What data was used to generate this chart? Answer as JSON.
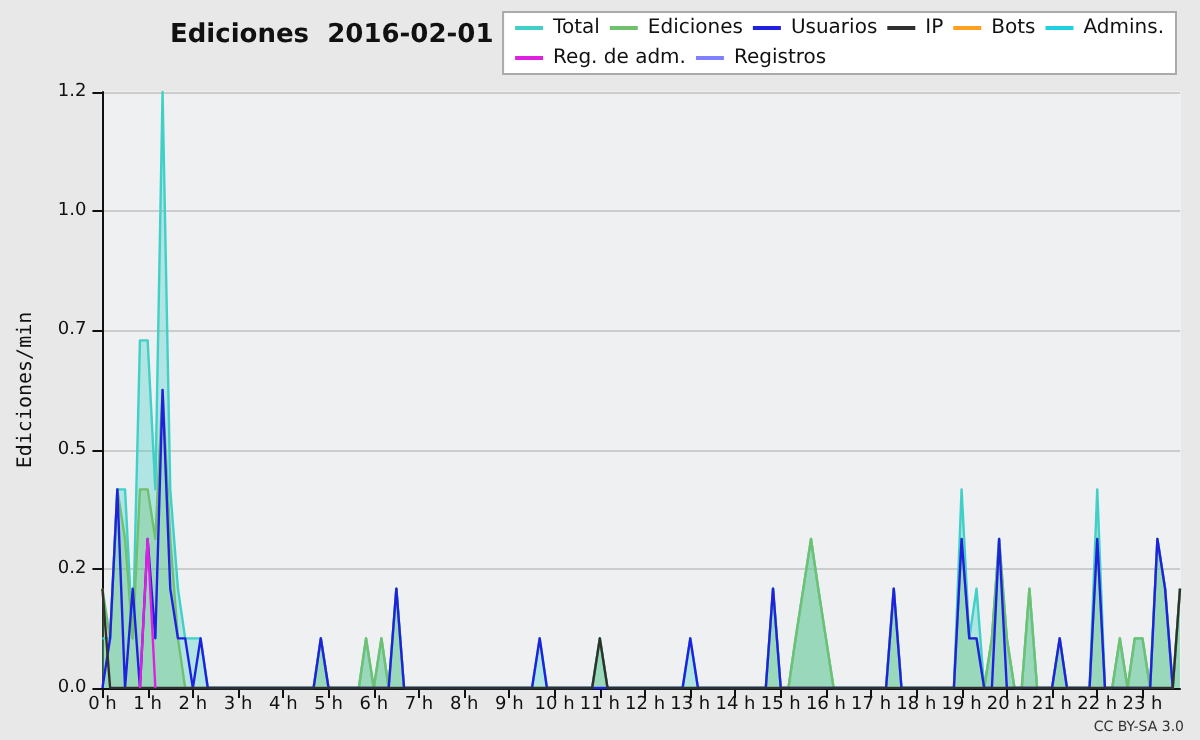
{
  "chart_data": {
    "type": "line",
    "title": "Ediciones  2016-02-01",
    "ylabel": "Ediciones/min",
    "annotations": [
      "CC BY-SA 3.0"
    ],
    "xlim": [
      0,
      23.83
    ],
    "xticks": [
      {
        "value": 0,
        "label": "0 h"
      },
      {
        "value": 1,
        "label": "1 h"
      },
      {
        "value": 2,
        "label": "2 h"
      },
      {
        "value": 3,
        "label": "3 h"
      },
      {
        "value": 4,
        "label": "4 h"
      },
      {
        "value": 5,
        "label": "5 h"
      },
      {
        "value": 6,
        "label": "6 h"
      },
      {
        "value": 7,
        "label": "7 h"
      },
      {
        "value": 8,
        "label": "8 h"
      },
      {
        "value": 9,
        "label": "9 h"
      },
      {
        "value": 10,
        "label": "10 h"
      },
      {
        "value": 11,
        "label": "11 h"
      },
      {
        "value": 12,
        "label": "12 h"
      },
      {
        "value": 13,
        "label": "13 h"
      },
      {
        "value": 14,
        "label": "14 h"
      },
      {
        "value": 15,
        "label": "15 h"
      },
      {
        "value": 16,
        "label": "16 h"
      },
      {
        "value": 17,
        "label": "17 h"
      },
      {
        "value": 18,
        "label": "18 h"
      },
      {
        "value": 19,
        "label": "19 h"
      },
      {
        "value": 20,
        "label": "20 h"
      },
      {
        "value": 21,
        "label": "21 h"
      },
      {
        "value": 22,
        "label": "22 h"
      },
      {
        "value": 23,
        "label": "23 h"
      }
    ],
    "ylim": [
      0,
      1.2
    ],
    "yticks": [
      {
        "value": 0,
        "label": "0.0"
      },
      {
        "value": 0.24,
        "label": "0.2"
      },
      {
        "value": 0.48,
        "label": "0.5"
      },
      {
        "value": 0.72,
        "label": "0.7"
      },
      {
        "value": 0.96,
        "label": "1.0"
      },
      {
        "value": 1.2,
        "label": "1.2"
      }
    ],
    "grid": "y",
    "legend": "top right",
    "series": [
      {
        "name": "Total",
        "type": "area",
        "color": "#40d0c8",
        "x": [
          0,
          0.17,
          0.33,
          0.5,
          0.67,
          0.83,
          1,
          1.17,
          1.33,
          1.5,
          1.67,
          1.83,
          2,
          2.17,
          2.33,
          4.67,
          4.83,
          5,
          5.67,
          5.83,
          6,
          6.17,
          6.33,
          6.5,
          6.67,
          9.5,
          9.67,
          9.83,
          10.83,
          11,
          11.17,
          12.83,
          13,
          13.17,
          14.67,
          14.83,
          15,
          15.17,
          15.33,
          15.5,
          15.67,
          15.83,
          16,
          16.17,
          17.33,
          17.5,
          17.67,
          18.83,
          19,
          19.17,
          19.33,
          19.5,
          19.67,
          19.83,
          20,
          20.17,
          20.33,
          20.5,
          20.67,
          21,
          21.17,
          21.33,
          21.83,
          22,
          22.17,
          22.33,
          22.5,
          22.67,
          22.83,
          23,
          23.17,
          23.33,
          23.5,
          23.67,
          23.83
        ],
        "values": [
          0.1,
          0.1,
          0.4,
          0.4,
          0.1,
          0.7,
          0.7,
          0.4,
          1.2,
          0.4,
          0.2,
          0.1,
          0.1,
          0.1,
          0,
          0,
          0.1,
          0,
          0,
          0.1,
          0,
          0.1,
          0,
          0.2,
          0,
          0,
          0.1,
          0,
          0,
          0.1,
          0,
          0,
          0.1,
          0,
          0,
          0.2,
          0,
          0,
          0.1,
          0.2,
          0.3,
          0.2,
          0.1,
          0,
          0,
          0.2,
          0,
          0,
          0.4,
          0.1,
          0.2,
          0,
          0.1,
          0.3,
          0.1,
          0,
          0,
          0.2,
          0,
          0,
          0.1,
          0,
          0,
          0.4,
          0,
          0,
          0.1,
          0,
          0.1,
          0.1,
          0,
          0.3,
          0.2,
          0,
          0.2
        ]
      },
      {
        "name": "Ediciones",
        "type": "area",
        "color": "#70c070",
        "x": [
          0,
          0.17,
          0.33,
          0.5,
          0.67,
          0.83,
          1,
          1.17,
          1.33,
          1.5,
          1.67,
          1.83,
          4.67,
          4.83,
          5,
          5.67,
          5.83,
          6,
          6.17,
          6.33,
          6.5,
          6.67,
          10.83,
          11,
          11.17,
          14.67,
          14.83,
          15,
          15.17,
          15.33,
          15.5,
          15.67,
          15.83,
          16,
          16.17,
          17.33,
          17.5,
          17.67,
          18.83,
          19,
          19.17,
          19.33,
          19.5,
          19.67,
          19.83,
          20,
          20.17,
          20.33,
          20.5,
          20.67,
          21,
          21.17,
          21.33,
          21.83,
          22,
          22.17,
          22.33,
          22.5,
          22.67,
          22.83,
          23,
          23.17,
          23.33,
          23.5,
          23.67,
          23.83
        ],
        "values": [
          0.2,
          0.1,
          0.4,
          0.3,
          0.1,
          0.4,
          0.4,
          0.3,
          0.6,
          0.3,
          0.1,
          0,
          0,
          0.1,
          0,
          0,
          0.1,
          0,
          0.1,
          0,
          0.2,
          0,
          0,
          0.1,
          0,
          0,
          0.2,
          0,
          0,
          0.1,
          0.2,
          0.3,
          0.2,
          0.1,
          0,
          0,
          0.2,
          0,
          0,
          0.3,
          0.1,
          0.1,
          0,
          0.1,
          0.3,
          0.1,
          0,
          0,
          0.2,
          0,
          0,
          0.1,
          0,
          0,
          0.3,
          0,
          0,
          0.1,
          0,
          0.1,
          0.1,
          0,
          0.3,
          0.2,
          0,
          0.2
        ]
      },
      {
        "name": "Usuarios",
        "type": "line",
        "color": "#2020e0",
        "x": [
          0,
          0.17,
          0.33,
          0.5,
          0.67,
          0.83,
          1,
          1.17,
          1.33,
          1.5,
          1.67,
          1.83,
          2,
          2.17,
          2.33,
          4.67,
          4.83,
          5,
          6.33,
          6.5,
          6.67,
          9.5,
          9.67,
          9.83,
          12.83,
          13,
          13.17,
          14.67,
          14.83,
          15,
          17.33,
          17.5,
          17.67,
          18.83,
          19,
          19.17,
          19.33,
          19.5,
          19.67,
          19.83,
          20,
          21,
          21.17,
          21.33,
          21.83,
          22,
          22.17,
          23.17,
          23.33,
          23.5,
          23.67
        ],
        "values": [
          0,
          0.1,
          0.4,
          0,
          0.2,
          0,
          0.3,
          0.1,
          0.6,
          0.2,
          0.1,
          0.1,
          0,
          0.1,
          0,
          0,
          0.1,
          0,
          0,
          0.2,
          0,
          0,
          0.1,
          0,
          0,
          0.1,
          0,
          0,
          0.2,
          0,
          0,
          0.2,
          0,
          0,
          0.3,
          0.1,
          0.1,
          0,
          0,
          0.3,
          0,
          0,
          0.1,
          0,
          0,
          0.3,
          0,
          0,
          0.3,
          0.2,
          0
        ]
      },
      {
        "name": "IP",
        "type": "line",
        "color": "#303030",
        "x": [
          0,
          0.17,
          10.83,
          11,
          11.17,
          23.67,
          23.83
        ],
        "values": [
          0.2,
          0,
          0,
          0.1,
          0,
          0,
          0.2
        ]
      },
      {
        "name": "Bots",
        "type": "line",
        "color": "#ffa020"
      },
      {
        "name": "Admins.",
        "type": "line",
        "color": "#20d0e0"
      },
      {
        "name": "Reg. de adm.",
        "type": "line",
        "color": "#e020e0",
        "x": [
          0.83,
          1,
          1.17
        ],
        "values": [
          0,
          0.3,
          0
        ]
      },
      {
        "name": "Registros",
        "type": "line",
        "color": "#8080ff"
      }
    ]
  }
}
